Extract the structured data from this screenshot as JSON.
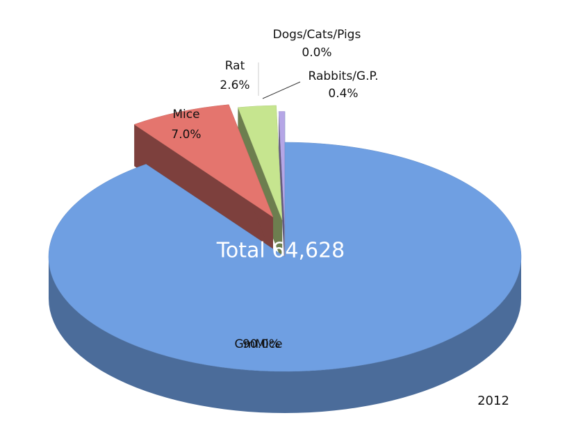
{
  "chart_data": {
    "type": "pie",
    "categories": [
      "GmMice",
      "Mice",
      "Rat",
      "Rabbits/G.P.",
      "Dogs/Cats/Pigs"
    ],
    "values": [
      90.0,
      7.0,
      2.6,
      0.4,
      0.0
    ],
    "value_labels": [
      "90.0%",
      "7.0%",
      "2.6%",
      "0.4%",
      "0.0%"
    ],
    "colors": [
      "#6f9fe2",
      "#e4756e",
      "#c6e58f",
      "#b5a6e6",
      "#9cc0e6"
    ],
    "annotations": [
      "Total  64,628",
      "2012"
    ]
  }
}
